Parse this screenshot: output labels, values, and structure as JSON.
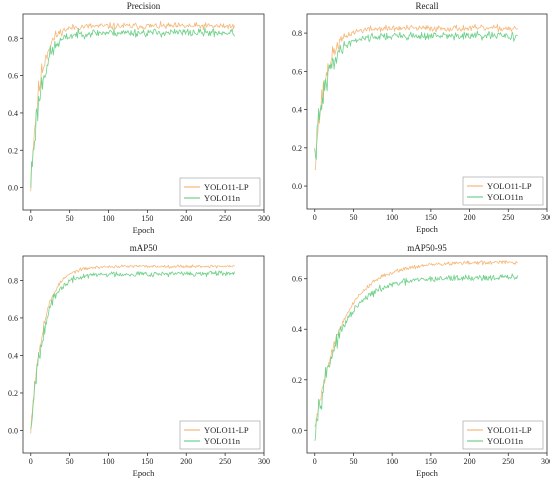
{
  "colors": {
    "yolo11_lp": "#f5b97a",
    "yolo11n": "#6fd18a"
  },
  "chart_data": [
    {
      "type": "line",
      "title": "Precision",
      "xlabel": "Epoch",
      "ylabel": "",
      "xlim": [
        -10,
        300
      ],
      "ylim": [
        -0.12,
        0.93
      ],
      "xticks": [
        0,
        50,
        100,
        150,
        200,
        250,
        300
      ],
      "yticks": [
        0.0,
        0.2,
        0.4,
        0.6,
        0.8
      ],
      "legend_position": "bottom-right",
      "series": [
        {
          "name": "YOLO11-LP",
          "color": "#f5b97a",
          "start": 0.03,
          "plateau": 0.865,
          "rate": 0.085,
          "noise": 0.018,
          "seed": 11
        },
        {
          "name": "YOLO11n",
          "color": "#6fd18a",
          "start": 0.03,
          "plateau": 0.83,
          "rate": 0.075,
          "noise": 0.022,
          "seed": 23
        }
      ]
    },
    {
      "type": "line",
      "title": "Recall",
      "xlabel": "Epoch",
      "ylabel": "",
      "xlim": [
        -10,
        300
      ],
      "ylim": [
        -0.12,
        0.9
      ],
      "xticks": [
        0,
        50,
        100,
        150,
        200,
        250,
        300
      ],
      "yticks": [
        0.0,
        0.2,
        0.4,
        0.6,
        0.8
      ],
      "legend_position": "bottom-right",
      "series": [
        {
          "name": "YOLO11-LP",
          "color": "#f5b97a",
          "start": 0.12,
          "plateau": 0.825,
          "rate": 0.07,
          "noise": 0.017,
          "seed": 37
        },
        {
          "name": "YOLO11n",
          "color": "#6fd18a",
          "start": 0.14,
          "plateau": 0.785,
          "rate": 0.065,
          "noise": 0.021,
          "seed": 41
        }
      ]
    },
    {
      "type": "line",
      "title": "mAP50",
      "xlabel": "Epoch",
      "ylabel": "",
      "xlim": [
        -10,
        300
      ],
      "ylim": [
        -0.12,
        0.93
      ],
      "xticks": [
        0,
        50,
        100,
        150,
        200,
        250,
        300
      ],
      "yticks": [
        0.0,
        0.2,
        0.4,
        0.6,
        0.8
      ],
      "legend_position": "bottom-right",
      "series": [
        {
          "name": "YOLO11-LP",
          "color": "#f5b97a",
          "start": 0.02,
          "plateau": 0.875,
          "rate": 0.06,
          "noise": 0.008,
          "seed": 53
        },
        {
          "name": "YOLO11n",
          "color": "#6fd18a",
          "start": 0.02,
          "plateau": 0.835,
          "rate": 0.06,
          "noise": 0.015,
          "seed": 67
        }
      ]
    },
    {
      "type": "line",
      "title": "mAP50-95",
      "xlabel": "Epoch",
      "ylabel": "",
      "xlim": [
        -10,
        300
      ],
      "ylim": [
        -0.09,
        0.69
      ],
      "xticks": [
        0,
        50,
        100,
        150,
        200,
        250,
        300
      ],
      "yticks": [
        0.0,
        0.2,
        0.4,
        0.6
      ],
      "legend_position": "bottom-right",
      "series": [
        {
          "name": "YOLO11-LP",
          "color": "#f5b97a",
          "start": 0.01,
          "plateau": 0.665,
          "rate": 0.028,
          "noise": 0.008,
          "seed": 79
        },
        {
          "name": "YOLO11n",
          "color": "#6fd18a",
          "start": 0.01,
          "plateau": 0.605,
          "rate": 0.03,
          "noise": 0.013,
          "seed": 97
        }
      ]
    }
  ]
}
